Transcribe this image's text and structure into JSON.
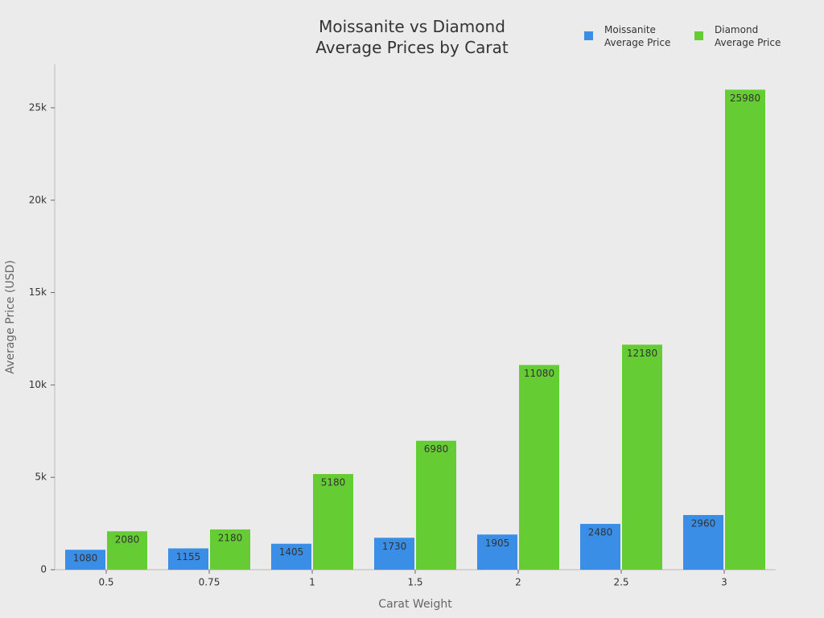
{
  "chart_data": {
    "type": "bar",
    "title": "Moissanite vs Diamond Average Prices by Carat",
    "x_label": "Carat Weight",
    "y_label": "Average Price (USD)",
    "categories": [
      "0.5",
      "0.75",
      "1",
      "1.5",
      "2",
      "2.5",
      "3"
    ],
    "series": [
      {
        "name": "Moissanite Average Price",
        "color": "#3a8ee6",
        "values": [
          1080,
          1155,
          1405,
          1730,
          1905,
          2480,
          2960
        ]
      },
      {
        "name": "Diamond Average Price",
        "color": "#66cc33",
        "values": [
          2080,
          2180,
          5180,
          6980,
          11080,
          12180,
          25980
        ]
      }
    ],
    "ylim": [
      0,
      27350
    ],
    "yticks": [
      0,
      {
        "value": 5000,
        "label": "5k"
      },
      {
        "value": 10000,
        "label": "10k"
      },
      {
        "value": 15000,
        "label": "15k"
      },
      {
        "value": 20000,
        "label": "20k"
      },
      {
        "value": 25000,
        "label": "25k"
      }
    ],
    "legend": "top-right"
  }
}
